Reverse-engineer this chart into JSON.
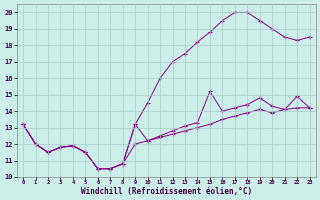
{
  "xlabel": "Windchill (Refroidissement éolien,°C)",
  "background_color": "#cceee8",
  "grid_color": "#aacccc",
  "line_color": "#880088",
  "xlim": [
    -0.5,
    23.5
  ],
  "ylim": [
    10,
    20.5
  ],
  "xticks": [
    0,
    1,
    2,
    3,
    4,
    5,
    6,
    7,
    8,
    9,
    10,
    11,
    12,
    13,
    14,
    15,
    16,
    17,
    18,
    19,
    20,
    21,
    22,
    23
  ],
  "yticks": [
    10,
    11,
    12,
    13,
    14,
    15,
    16,
    17,
    18,
    19,
    20
  ],
  "series1_x": [
    0,
    1,
    2,
    3,
    4,
    5,
    6,
    7,
    8,
    9,
    10,
    11,
    12,
    13,
    14,
    15,
    16,
    17,
    18,
    19,
    20,
    21,
    22,
    23
  ],
  "series1_y": [
    13.2,
    12.0,
    11.5,
    11.8,
    11.9,
    11.5,
    10.5,
    10.5,
    10.8,
    12.0,
    12.2,
    12.4,
    12.6,
    12.8,
    13.0,
    13.2,
    13.5,
    13.7,
    13.9,
    14.1,
    13.9,
    14.1,
    14.2,
    14.2
  ],
  "series2_x": [
    0,
    1,
    2,
    3,
    4,
    5,
    6,
    7,
    8,
    9,
    10,
    11,
    12,
    13,
    14,
    15,
    16,
    17,
    18,
    19,
    20,
    21,
    22,
    23
  ],
  "series2_y": [
    13.2,
    12.0,
    11.5,
    11.8,
    11.9,
    11.5,
    10.5,
    10.5,
    10.8,
    13.2,
    14.5,
    16.0,
    17.0,
    17.5,
    18.2,
    18.8,
    19.5,
    20.0,
    20.0,
    19.5,
    19.0,
    18.5,
    18.3,
    18.5
  ],
  "series3_x": [
    0,
    1,
    2,
    3,
    4,
    5,
    6,
    7,
    8,
    9,
    10,
    11,
    12,
    13,
    14,
    15,
    16,
    17,
    18,
    19,
    20,
    21,
    22,
    23
  ],
  "series3_y": [
    13.2,
    12.0,
    11.5,
    11.8,
    11.9,
    11.5,
    10.5,
    10.5,
    10.8,
    13.2,
    12.2,
    12.5,
    12.8,
    13.1,
    13.3,
    15.2,
    14.0,
    14.2,
    14.4,
    14.8,
    14.3,
    14.1,
    14.9,
    14.2
  ]
}
